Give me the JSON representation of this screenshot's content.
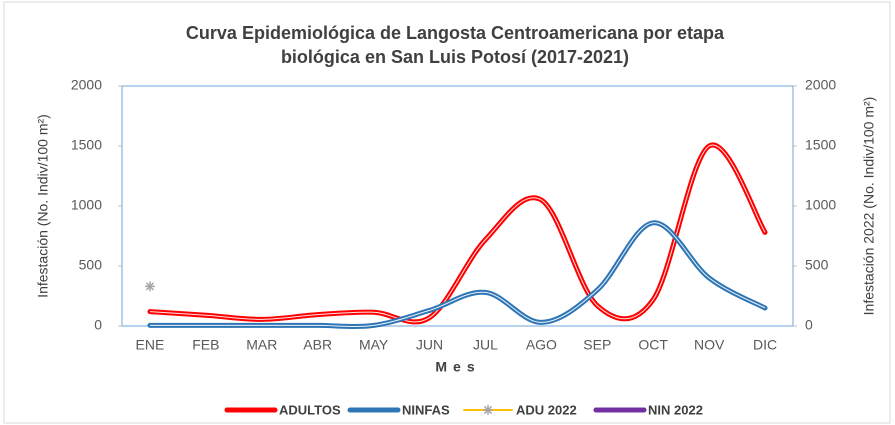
{
  "chart_data": {
    "type": "line",
    "title": [
      "Curva Epidemiológica de Langosta Centroamericana por etapa",
      "biológica en San Luis Potosí (2017-2021)"
    ],
    "x_label": "Mes",
    "y_label": "Infestación (No. Indiv/100 m²)",
    "y2_label": "Infestación 2022 (No. Indiv/100 m²)",
    "categories": [
      "ENE",
      "FEB",
      "MAR",
      "ABR",
      "MAY",
      "JUN",
      "JUL",
      "AGO",
      "SEP",
      "OCT",
      "NOV",
      "DIC"
    ],
    "smooth": true,
    "series": [
      {
        "name": "ADULTOS",
        "color": "#ff0000",
        "values": [
          120,
          90,
          55,
          95,
          115,
          70,
          720,
          1050,
          170,
          220,
          1500,
          780
        ]
      },
      {
        "name": "NINFAS",
        "color": "#2e75b6",
        "values": [
          5,
          5,
          5,
          5,
          5,
          130,
          280,
          30,
          300,
          860,
          400,
          150
        ]
      },
      {
        "name": "ADU 2022",
        "color": "#ffc000",
        "marker": "asterisk",
        "marker_color": "#a6a6a6",
        "axis": "y2",
        "values": [
          330,
          null,
          null,
          null,
          null,
          null,
          null,
          null,
          null,
          null,
          null,
          null
        ]
      },
      {
        "name": "NIN 2022",
        "color": "#7030a0",
        "axis": "y2",
        "values": [
          null,
          null,
          null,
          null,
          null,
          null,
          null,
          null,
          null,
          null,
          null,
          null
        ]
      }
    ],
    "ylim": [
      0,
      2000
    ],
    "yticks": [
      0,
      500,
      1000,
      1500,
      2000
    ],
    "y2lim": [
      0,
      2000
    ],
    "y2ticks": [
      0,
      500,
      1000,
      1500,
      2000
    ],
    "legend": "bottom"
  }
}
